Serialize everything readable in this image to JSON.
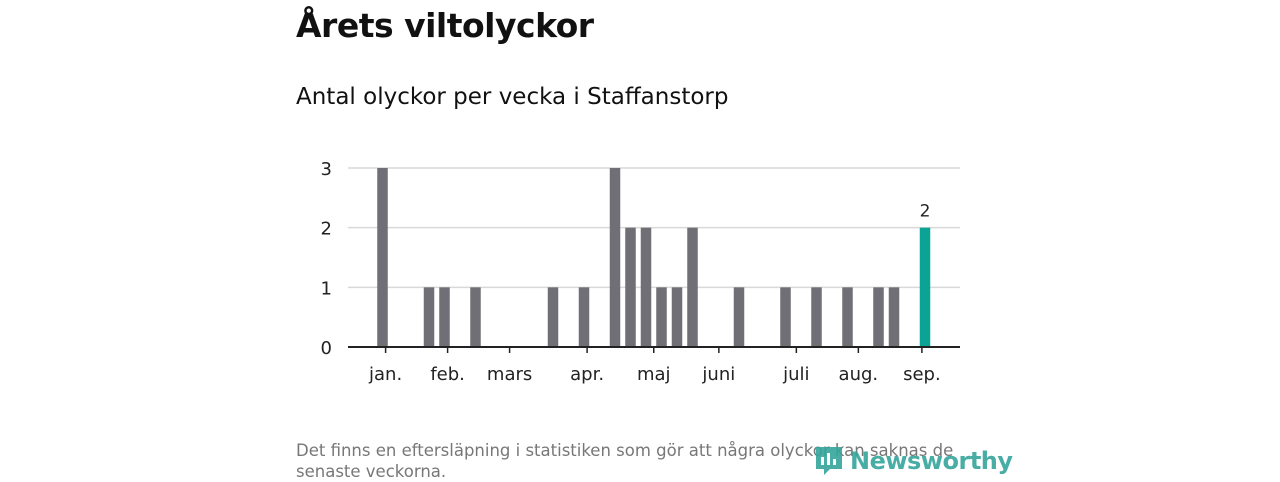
{
  "title": "Årets viltolyckor",
  "subtitle": "Antal olyckor per vecka i Staffanstorp",
  "footnote": "Det finns en eftersläpning i statistiken som gör att några olyckor kan saknas de senaste veckorna.",
  "logo": {
    "text": "Newsworthy"
  },
  "colors": {
    "bar": "#706f75",
    "highlight": "#0aa396",
    "grid": "#d9d9d9",
    "axis": "#222222"
  },
  "chart_data": {
    "type": "bar",
    "xlabel": "",
    "ylabel": "",
    "ylim": [
      0,
      3
    ],
    "yticks": [
      "0",
      "1",
      "2",
      "3"
    ],
    "grid": true,
    "x": [
      1,
      2,
      3,
      4,
      5,
      6,
      7,
      8,
      9,
      10,
      11,
      12,
      13,
      14,
      15,
      16,
      17,
      18,
      19,
      20,
      21,
      22,
      23,
      24,
      25,
      26,
      27,
      28,
      29,
      30,
      31,
      32,
      33,
      34,
      35,
      36,
      37
    ],
    "values": [
      3,
      0,
      0,
      1,
      1,
      0,
      1,
      0,
      0,
      0,
      0,
      1,
      0,
      1,
      0,
      3,
      2,
      2,
      1,
      1,
      2,
      0,
      0,
      1,
      0,
      0,
      1,
      0,
      1,
      0,
      1,
      0,
      1,
      1,
      0,
      2,
      0
    ],
    "highlight_index": 35,
    "highlight_label": "2",
    "month_labels": [
      {
        "label": "jan.",
        "week": 1.2
      },
      {
        "label": "feb.",
        "week": 5.2
      },
      {
        "label": "mars",
        "week": 9.2
      },
      {
        "label": "apr.",
        "week": 14.2
      },
      {
        "label": "maj",
        "week": 18.5
      },
      {
        "label": "juni",
        "week": 22.7
      },
      {
        "label": "juli",
        "week": 27.7
      },
      {
        "label": "aug.",
        "week": 31.7
      },
      {
        "label": "sep.",
        "week": 35.8
      }
    ]
  }
}
